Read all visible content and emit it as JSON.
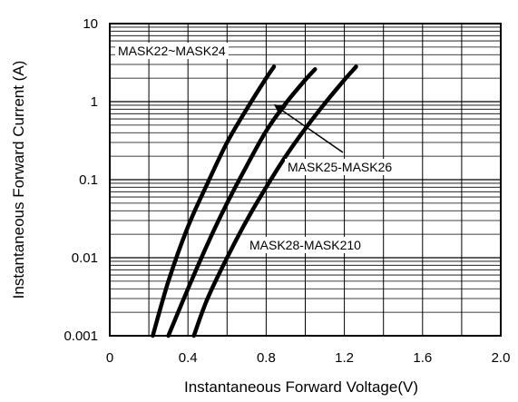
{
  "chart_data": {
    "type": "line",
    "title": "",
    "xlabel": "Instantaneous Forward Voltage(V)",
    "ylabel": "Instantaneous Forward Current (A)",
    "xlim": [
      0,
      2.0
    ],
    "ylim": [
      0.001,
      10
    ],
    "yscale": "log",
    "grid": true,
    "x_ticks": [
      "0",
      "0.4",
      "0.8",
      "1.2",
      "1.6",
      "2.0"
    ],
    "y_ticks": [
      "0.001",
      "0.01",
      "0.1",
      "1",
      "10"
    ],
    "series": [
      {
        "name": "MASK22~MASK24",
        "x": [
          0.22,
          0.3,
          0.4,
          0.5,
          0.6,
          0.7,
          0.8,
          0.84
        ],
        "y": [
          0.001,
          0.005,
          0.025,
          0.09,
          0.3,
          0.8,
          2.0,
          2.8
        ]
      },
      {
        "name": "MASK25-MASK26",
        "x": [
          0.3,
          0.4,
          0.5,
          0.6,
          0.7,
          0.8,
          0.9,
          1.0,
          1.05
        ],
        "y": [
          0.001,
          0.004,
          0.015,
          0.05,
          0.15,
          0.42,
          0.95,
          1.9,
          2.6
        ]
      },
      {
        "name": "MASK28-MASK210",
        "x": [
          0.43,
          0.5,
          0.6,
          0.7,
          0.8,
          0.9,
          1.0,
          1.1,
          1.2,
          1.26
        ],
        "y": [
          0.001,
          0.003,
          0.01,
          0.03,
          0.08,
          0.2,
          0.45,
          0.95,
          1.9,
          2.8
        ]
      }
    ],
    "annotations": [
      "MASK22~MASK24",
      "MASK25-MASK26",
      "MASK28-MASK210"
    ]
  }
}
